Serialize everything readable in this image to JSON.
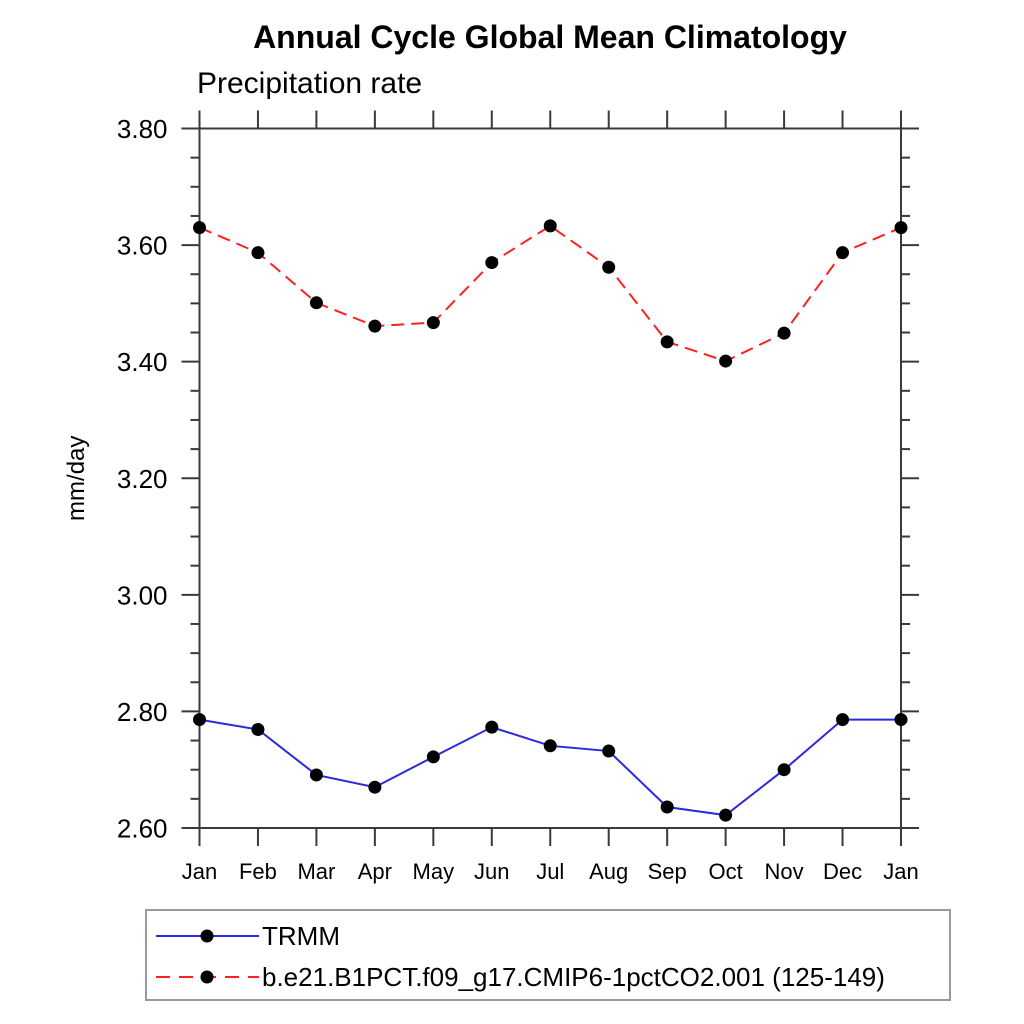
{
  "title": "Annual Cycle Global Mean Climatology",
  "subtitle": "Precipitation rate",
  "chart_data": {
    "type": "line",
    "categories": [
      "Jan",
      "Feb",
      "Mar",
      "Apr",
      "May",
      "Jun",
      "Jul",
      "Aug",
      "Sep",
      "Oct",
      "Nov",
      "Dec",
      "Jan"
    ],
    "xlabel": "",
    "ylabel": "mm/day",
    "ylim": [
      2.6,
      3.8
    ],
    "y_major_ticks": [
      2.6,
      2.8,
      3.0,
      3.2,
      3.4,
      3.6,
      3.8
    ],
    "y_tick_labels": [
      "2.60",
      "2.80",
      "3.00",
      "3.20",
      "3.40",
      "3.60",
      "3.80"
    ],
    "y_minor_step": 0.05,
    "grid": false,
    "legend_position": "bottom-left-box",
    "marker_color": "#000000",
    "series": [
      {
        "name": "TRMM",
        "color": "#2a2ae0",
        "style": "solid",
        "marker": "circle",
        "values": [
          2.786,
          2.769,
          2.691,
          2.67,
          2.722,
          2.773,
          2.741,
          2.732,
          2.636,
          2.622,
          2.7,
          2.786,
          2.786
        ]
      },
      {
        "name": "b.e21.B1PCT.f09_g17.CMIP6-1pctCO2.001 (125-149)",
        "color": "#ff2020",
        "style": "dashed",
        "marker": "circle",
        "values": [
          3.63,
          3.587,
          3.501,
          3.461,
          3.467,
          3.57,
          3.633,
          3.562,
          3.434,
          3.401,
          3.449,
          3.587,
          3.63
        ]
      }
    ]
  }
}
